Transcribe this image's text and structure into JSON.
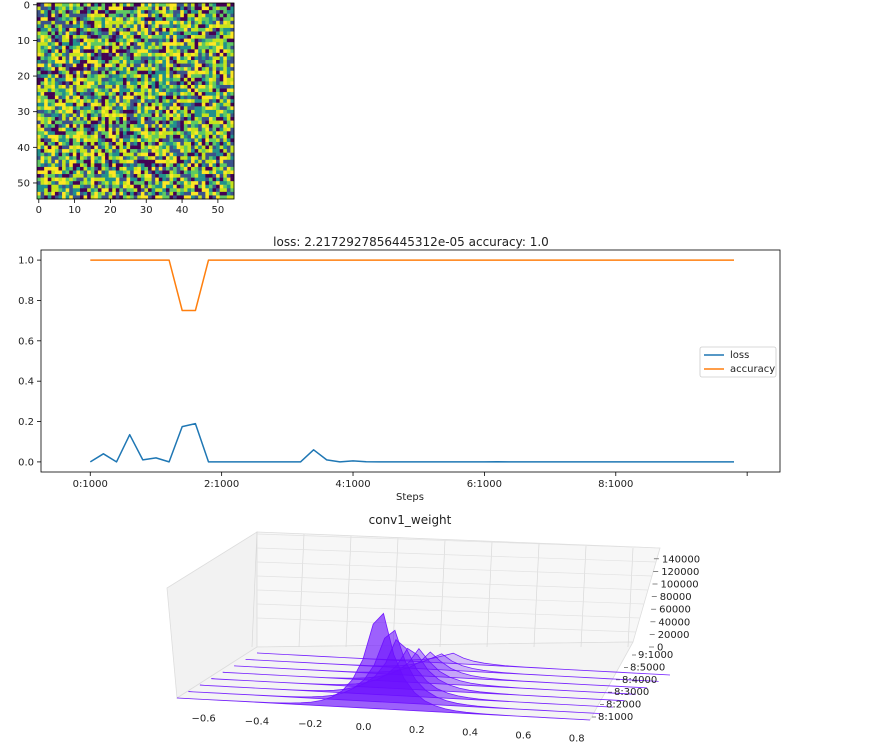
{
  "chart_data": [
    {
      "type": "heatmap",
      "rows": 55,
      "cols": 55,
      "xlim": [
        0,
        55
      ],
      "ylim": [
        55,
        0
      ],
      "xticks": [
        "0",
        "10",
        "20",
        "30",
        "40",
        "50"
      ],
      "yticks": [
        "0",
        "10",
        "20",
        "30",
        "40",
        "50"
      ],
      "colormap": [
        "#440154",
        "#3b528b",
        "#21918c",
        "#5ec962",
        "#c6e31c",
        "#fde725"
      ]
    },
    {
      "type": "line",
      "title": "loss: 2.2172927856445312e-05   accuracy: 1.0",
      "xlabel": "Steps",
      "ylabel": "",
      "xticks": [
        "0:1000",
        "2:1000",
        "4:1000",
        "6:1000",
        "8:1000"
      ],
      "yticks": [
        "0.0",
        "0.2",
        "0.4",
        "0.6",
        "0.8",
        "1.0"
      ],
      "xlim": [
        -0.75,
        10.5
      ],
      "ylim": [
        -0.05,
        1.05
      ],
      "grid": false,
      "legend": "center-right",
      "series": [
        {
          "name": "loss",
          "color": "#1f77b4",
          "x": [
            0,
            0.2,
            0.4,
            0.6,
            0.8,
            1.0,
            1.2,
            1.4,
            1.6,
            1.8,
            2.0,
            2.2,
            2.4,
            2.6,
            2.8,
            3.0,
            3.2,
            3.4,
            3.6,
            3.8,
            4.0,
            4.2,
            4.4,
            4.6,
            4.8,
            5.0,
            5.2,
            5.4,
            5.6,
            5.8,
            6.0,
            6.2,
            6.4,
            6.6,
            6.8,
            7.0,
            7.2,
            7.4,
            7.6,
            7.8,
            8.0,
            8.2,
            8.4,
            8.6,
            8.8,
            9.0,
            9.2,
            9.4,
            9.6,
            9.8
          ],
          "values": [
            0.0,
            0.04,
            0.0,
            0.135,
            0.01,
            0.02,
            0.0,
            0.175,
            0.19,
            0.0,
            0.0,
            0.0,
            0.0,
            0.0,
            0.0,
            0.0,
            0.0,
            0.06,
            0.01,
            0.0,
            0.005,
            0.001,
            0.0,
            0.0,
            0.0,
            0.0,
            0.0,
            0.0,
            0.0,
            0.0,
            0.0,
            0.001,
            0.0,
            0.0,
            0.0,
            0.0,
            0.0,
            0.0,
            0.0,
            0.0,
            0.0,
            0.0,
            0.0,
            0.0,
            0.0,
            0.0,
            0.0,
            0.0,
            0.0,
            0.0
          ]
        },
        {
          "name": "accuracy",
          "color": "#ff7f0e",
          "x": [
            0,
            0.2,
            0.4,
            0.6,
            0.8,
            1.0,
            1.2,
            1.4,
            1.6,
            1.8,
            2.0,
            2.2,
            2.4,
            2.6,
            2.8,
            3.0,
            3.2,
            3.4,
            3.6,
            3.8,
            4.0,
            4.2,
            4.4,
            4.6,
            4.8,
            5.0,
            5.2,
            5.4,
            5.6,
            5.8,
            6.0,
            6.2,
            6.4,
            6.6,
            6.8,
            7.0,
            7.2,
            7.4,
            7.6,
            7.8,
            8.0,
            8.2,
            8.4,
            8.6,
            8.8,
            9.0,
            9.2,
            9.4,
            9.6,
            9.8
          ],
          "values": [
            1.0,
            1.0,
            1.0,
            1.0,
            1.0,
            1.0,
            1.0,
            0.75,
            0.75,
            1.0,
            1.0,
            1.0,
            1.0,
            1.0,
            1.0,
            1.0,
            1.0,
            1.0,
            1.0,
            1.0,
            1.0,
            1.0,
            1.0,
            1.0,
            1.0,
            1.0,
            1.0,
            1.0,
            1.0,
            1.0,
            1.0,
            1.0,
            1.0,
            1.0,
            1.0,
            1.0,
            1.0,
            1.0,
            1.0,
            1.0,
            1.0,
            1.0,
            1.0,
            1.0,
            1.0,
            1.0,
            1.0,
            1.0,
            1.0,
            1.0
          ]
        }
      ]
    },
    {
      "type": "area",
      "title": "conv1_weight",
      "xticks": [
        "−0.6",
        "−0.4",
        "−0.2",
        "0.0",
        "0.2",
        "0.4",
        "0.6",
        "0.8"
      ],
      "yticks": [
        "8:1000",
        "8:2000",
        "8:3000",
        "8:4000",
        "8:5000",
        "9:1000"
      ],
      "zticks": [
        "0",
        "20000",
        "40000",
        "60000",
        "80000",
        "100000",
        "120000",
        "140000"
      ],
      "xlim": [
        -0.7,
        0.85
      ],
      "zlim": [
        0,
        150000
      ],
      "color": "#6a0dff",
      "histograms": [
        {
          "peak_x": 0.03,
          "peak": 14000
        },
        {
          "peak_x": 0.03,
          "peak": 22000
        },
        {
          "peak_x": 0.04,
          "peak": 32000
        },
        {
          "peak_x": 0.04,
          "peak": 45000
        },
        {
          "peak_x": 0.05,
          "peak": 62000
        },
        {
          "peak_x": 0.05,
          "peak": 85000
        },
        {
          "peak_x": 0.06,
          "peak": 112000
        },
        {
          "peak_x": 0.06,
          "peak": 148000
        }
      ]
    }
  ]
}
